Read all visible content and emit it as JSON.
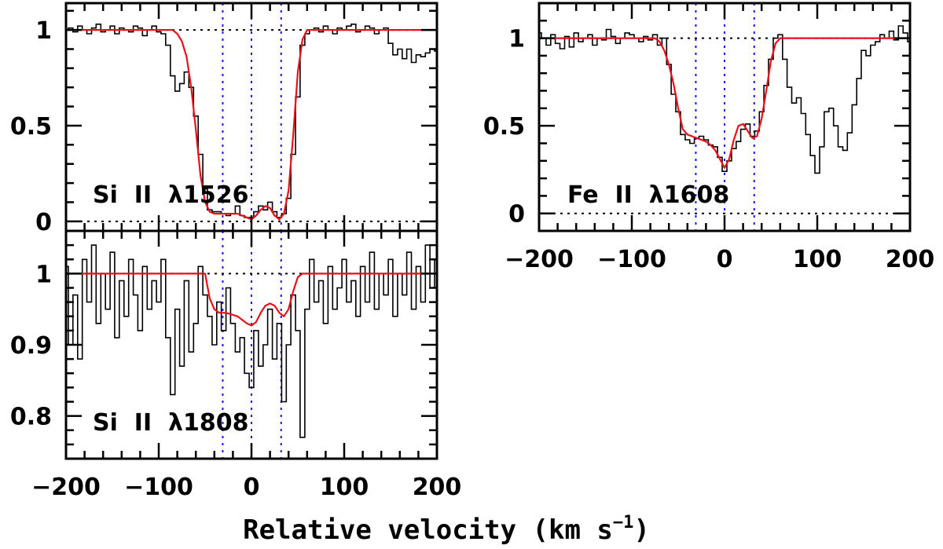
{
  "chart_data": {
    "type": "line",
    "xlabel": "Relative velocity (km s",
    "xlabel_exponent": "−1",
    "xlabel_close": ")",
    "xlim": [
      -200,
      200
    ],
    "x_ticks": [
      -200,
      -100,
      0,
      100,
      200
    ],
    "x_tick_labels": [
      "−200",
      "−100",
      "0",
      "100",
      "200"
    ],
    "component_velocities": [
      -31,
      0,
      32
    ],
    "colors": {
      "data": "#000000",
      "model": "#e8101a",
      "components": "#1a1adc",
      "reference": "#000000"
    },
    "panels": [
      {
        "id": "si1526",
        "label": "Si  II  λ1526",
        "ylim": [
          -0.05,
          1.14
        ],
        "y_ticks": [
          0,
          0.5,
          1
        ],
        "y_tick_labels": [
          "0",
          "0.5",
          "1"
        ],
        "reference_lines": [
          0,
          1
        ],
        "data_x": [
          -200,
          -195,
          -190,
          -185,
          -180,
          -175,
          -170,
          -165,
          -160,
          -155,
          -150,
          -145,
          -140,
          -135,
          -130,
          -125,
          -120,
          -115,
          -110,
          -105,
          -100,
          -95,
          -90,
          -85,
          -80,
          -75,
          -70,
          -65,
          -60,
          -55,
          -50,
          -45,
          -40,
          -35,
          -30,
          -25,
          -20,
          -15,
          -10,
          -5,
          0,
          5,
          10,
          15,
          20,
          25,
          30,
          35,
          40,
          45,
          50,
          55,
          60,
          65,
          70,
          75,
          80,
          85,
          90,
          95,
          100,
          105,
          110,
          115,
          120,
          125,
          130,
          135,
          140,
          145,
          150,
          155,
          160,
          165,
          170,
          175,
          180,
          185,
          190,
          195,
          200
        ],
        "data_y": [
          1.0,
          1.01,
          0.99,
          1.02,
          1.0,
          0.98,
          1.01,
          1.03,
          0.99,
          1.0,
          1.02,
          0.98,
          1.01,
          1.0,
          0.99,
          1.02,
          1.01,
          0.97,
          1.0,
          1.02,
          0.99,
          0.98,
          0.92,
          0.76,
          0.68,
          0.72,
          0.78,
          0.7,
          0.55,
          0.35,
          0.17,
          0.06,
          0.05,
          0.05,
          0.04,
          0.03,
          0.04,
          0.08,
          0.03,
          0.02,
          0.02,
          0.05,
          0.08,
          0.06,
          0.1,
          0.05,
          0.02,
          0.04,
          0.12,
          0.35,
          0.65,
          0.92,
          0.98,
          1.0,
          1.01,
          0.99,
          1.02,
          1.0,
          0.98,
          1.01,
          1.0,
          1.02,
          1.03,
          0.99,
          1.0,
          1.02,
          1.01,
          0.98,
          1.0,
          1.01,
          0.93,
          0.87,
          0.9,
          0.85,
          0.9,
          0.83,
          0.87,
          0.86,
          0.88,
          0.9,
          0.89
        ],
        "model_x": [
          -200,
          -85,
          -80,
          -75,
          -70,
          -65,
          -60,
          -55,
          -50,
          -45,
          -40,
          -35,
          -30,
          -25,
          -20,
          -15,
          -10,
          -5,
          0,
          5,
          10,
          15,
          20,
          25,
          30,
          35,
          40,
          45,
          50,
          55,
          60,
          200
        ],
        "model_y": [
          1.0,
          1.0,
          0.98,
          0.94,
          0.86,
          0.7,
          0.48,
          0.24,
          0.1,
          0.05,
          0.04,
          0.04,
          0.04,
          0.04,
          0.04,
          0.04,
          0.03,
          0.02,
          0.01,
          0.03,
          0.06,
          0.08,
          0.07,
          0.03,
          0.01,
          0.04,
          0.16,
          0.45,
          0.78,
          0.95,
          1.0,
          1.0
        ]
      },
      {
        "id": "si1808",
        "label": "Si  II  λ1808",
        "ylim": [
          0.74,
          1.06
        ],
        "y_ticks": [
          0.8,
          0.9,
          1
        ],
        "y_tick_labels": [
          "0.8",
          "0.9",
          "1"
        ],
        "reference_lines": [
          1
        ],
        "data_x": [
          -200,
          -195,
          -190,
          -185,
          -180,
          -175,
          -170,
          -165,
          -160,
          -155,
          -150,
          -145,
          -140,
          -135,
          -130,
          -125,
          -120,
          -115,
          -110,
          -105,
          -100,
          -95,
          -90,
          -85,
          -80,
          -75,
          -70,
          -65,
          -60,
          -55,
          -50,
          -45,
          -40,
          -35,
          -30,
          -25,
          -20,
          -15,
          -10,
          -5,
          0,
          5,
          10,
          15,
          20,
          25,
          30,
          35,
          40,
          45,
          50,
          55,
          60,
          65,
          70,
          75,
          80,
          85,
          90,
          95,
          100,
          105,
          110,
          115,
          120,
          125,
          130,
          135,
          140,
          145,
          150,
          155,
          160,
          165,
          170,
          175,
          180,
          185,
          190,
          195,
          200
        ],
        "data_y": [
          1.01,
          0.9,
          0.97,
          0.88,
          1.02,
          0.96,
          1.04,
          0.93,
          1.0,
          0.95,
          1.03,
          0.91,
          0.99,
          0.94,
          1.02,
          0.97,
          0.92,
          1.01,
          0.95,
          0.99,
          0.96,
          1.02,
          0.91,
          0.83,
          0.95,
          0.87,
          0.99,
          0.89,
          0.93,
          1.01,
          0.97,
          0.94,
          0.9,
          0.96,
          0.92,
          0.98,
          0.93,
          0.89,
          0.91,
          0.86,
          0.84,
          0.92,
          0.87,
          0.9,
          0.95,
          0.88,
          0.93,
          0.82,
          0.9,
          0.97,
          0.92,
          0.77,
          0.95,
          1.02,
          0.96,
          0.99,
          0.93,
          1.01,
          0.95,
          0.98,
          1.02,
          0.96,
          0.99,
          0.94,
          1.01,
          0.96,
          1.03,
          0.95,
          1.0,
          0.97,
          1.02,
          0.94,
          1.0,
          0.97,
          1.03,
          0.95,
          1.01,
          0.96,
          1.04,
          0.98,
          1.02
        ],
        "model_x": [
          -200,
          -50,
          -45,
          -40,
          -35,
          -30,
          -25,
          -20,
          -15,
          -10,
          -5,
          0,
          5,
          10,
          15,
          20,
          25,
          30,
          35,
          40,
          45,
          50,
          55,
          200
        ],
        "model_y": [
          1.0,
          1.0,
          0.965,
          0.95,
          0.945,
          0.945,
          0.944,
          0.942,
          0.94,
          0.935,
          0.93,
          0.927,
          0.932,
          0.945,
          0.955,
          0.958,
          0.955,
          0.945,
          0.94,
          0.95,
          0.975,
          0.995,
          1.0,
          1.0
        ]
      },
      {
        "id": "fe1608",
        "label": "Fe  II  λ1608",
        "ylim": [
          -0.1,
          1.2
        ],
        "y_ticks": [
          0,
          0.5,
          1
        ],
        "y_tick_labels": [
          "0",
          "0.5",
          "1"
        ],
        "reference_lines": [
          0,
          1
        ],
        "data_x": [
          -200,
          -195,
          -190,
          -185,
          -180,
          -175,
          -170,
          -165,
          -160,
          -155,
          -150,
          -145,
          -140,
          -135,
          -130,
          -125,
          -120,
          -115,
          -110,
          -105,
          -100,
          -95,
          -90,
          -85,
          -80,
          -75,
          -70,
          -65,
          -60,
          -55,
          -50,
          -45,
          -40,
          -35,
          -30,
          -25,
          -20,
          -15,
          -10,
          -5,
          0,
          5,
          10,
          15,
          20,
          25,
          30,
          35,
          40,
          45,
          50,
          55,
          60,
          65,
          70,
          75,
          80,
          85,
          90,
          95,
          100,
          105,
          110,
          115,
          120,
          125,
          130,
          135,
          140,
          145,
          150,
          155,
          160,
          165,
          170,
          175,
          180,
          185,
          190,
          195,
          200
        ],
        "data_y": [
          1.03,
          1.0,
          0.96,
          1.02,
          0.97,
          0.94,
          1.01,
          0.95,
          1.03,
          0.98,
          1.0,
          1.02,
          0.96,
          1.0,
          0.99,
          1.05,
          1.01,
          0.97,
          1.0,
          1.03,
          1.02,
          1.0,
          0.98,
          1.01,
          0.99,
          1.02,
          0.96,
          1.0,
          0.85,
          0.68,
          0.58,
          0.45,
          0.42,
          0.4,
          0.43,
          0.44,
          0.42,
          0.39,
          0.38,
          0.32,
          0.24,
          0.3,
          0.37,
          0.41,
          0.48,
          0.51,
          0.44,
          0.47,
          0.58,
          0.73,
          0.88,
          1.0,
          1.02,
          0.88,
          0.72,
          0.63,
          0.66,
          0.57,
          0.45,
          0.33,
          0.23,
          0.38,
          0.58,
          0.6,
          0.5,
          0.38,
          0.36,
          0.46,
          0.62,
          0.77,
          0.93,
          0.9,
          0.96,
          0.98,
          1.02,
          1.0,
          1.04,
          0.99,
          1.07,
          1.03,
          0.98
        ],
        "model_x": [
          -200,
          -75,
          -70,
          -65,
          -60,
          -55,
          -50,
          -45,
          -40,
          -35,
          -30,
          -25,
          -20,
          -15,
          -10,
          -5,
          0,
          5,
          10,
          15,
          20,
          25,
          30,
          35,
          40,
          45,
          50,
          55,
          60,
          200
        ],
        "model_y": [
          1.0,
          1.0,
          0.98,
          0.93,
          0.85,
          0.74,
          0.6,
          0.48,
          0.45,
          0.44,
          0.43,
          0.42,
          0.41,
          0.39,
          0.36,
          0.31,
          0.26,
          0.31,
          0.42,
          0.5,
          0.51,
          0.47,
          0.43,
          0.44,
          0.54,
          0.7,
          0.87,
          0.97,
          1.0,
          1.0
        ]
      }
    ]
  }
}
